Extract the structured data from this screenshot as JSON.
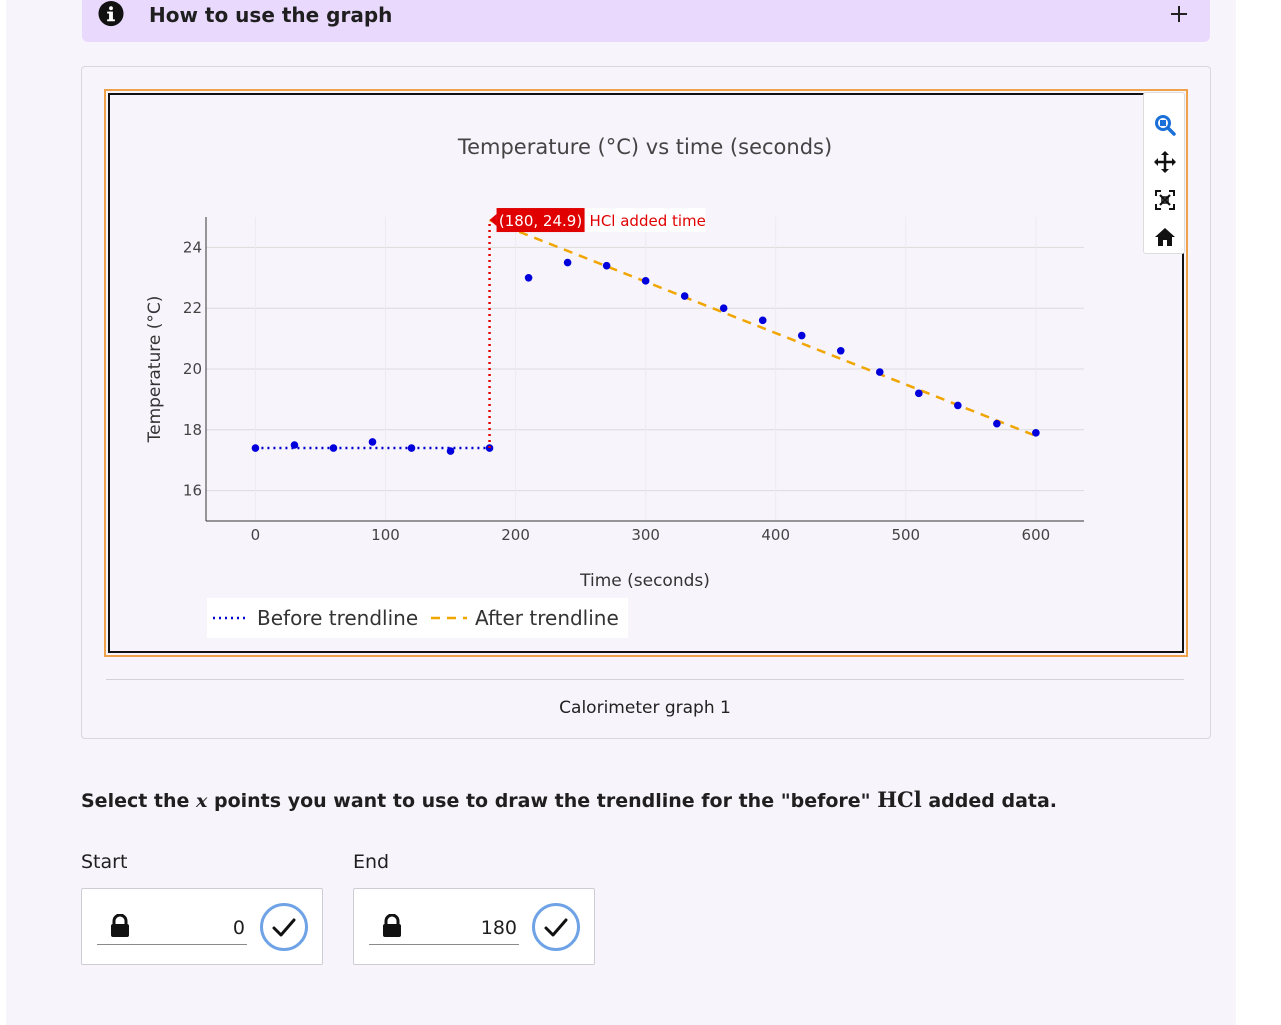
{
  "accordion": {
    "title": "How to use the graph"
  },
  "chart_data": {
    "type": "scatter",
    "title": "Temperature (°C) vs time (seconds)",
    "xlabel": "Time (seconds)",
    "ylabel": "Temperature (°C)",
    "xlim": [
      -38,
      637
    ],
    "ylim": [
      15,
      25
    ],
    "x_ticks": [
      0,
      100,
      200,
      300,
      400,
      500,
      600
    ],
    "y_ticks": [
      16,
      18,
      20,
      22,
      24
    ],
    "points": [
      {
        "x": 0,
        "y": 17.4
      },
      {
        "x": 30,
        "y": 17.5
      },
      {
        "x": 60,
        "y": 17.4
      },
      {
        "x": 90,
        "y": 17.6
      },
      {
        "x": 120,
        "y": 17.4
      },
      {
        "x": 150,
        "y": 17.3
      },
      {
        "x": 180,
        "y": 17.4
      },
      {
        "x": 210,
        "y": 23.0
      },
      {
        "x": 240,
        "y": 23.5
      },
      {
        "x": 270,
        "y": 23.4
      },
      {
        "x": 300,
        "y": 22.9
      },
      {
        "x": 330,
        "y": 22.4
      },
      {
        "x": 360,
        "y": 22.0
      },
      {
        "x": 390,
        "y": 21.6
      },
      {
        "x": 420,
        "y": 21.1
      },
      {
        "x": 450,
        "y": 20.6
      },
      {
        "x": 480,
        "y": 19.9
      },
      {
        "x": 510,
        "y": 19.2
      },
      {
        "x": 540,
        "y": 18.8
      },
      {
        "x": 570,
        "y": 18.2
      },
      {
        "x": 600,
        "y": 17.9
      }
    ],
    "series": [
      {
        "name": "Before trendline",
        "color": "#0000cc",
        "style": "dotted",
        "x": [
          0,
          180
        ],
        "y": [
          17.4,
          17.4
        ]
      },
      {
        "name": "After trendline",
        "color": "#f0a500",
        "style": "dashed",
        "x": [
          180,
          600
        ],
        "y": [
          24.9,
          17.8
        ]
      }
    ],
    "annotation": {
      "x": 180,
      "y": 24.9,
      "point_label": "(180, 24.9)",
      "text": "HCl added time",
      "color": "#e00000"
    },
    "grid": true,
    "legend_position": "bottom-left"
  },
  "caption": "Calorimeter graph 1",
  "question": {
    "part1": "Select the ",
    "var": "x",
    "part2": " points you want to use to draw the trendline for the \"before\" ",
    "chem": "HCl",
    "part3": " added data."
  },
  "start": {
    "label": "Start",
    "value": "0"
  },
  "end": {
    "label": "End",
    "value": "180"
  },
  "colors": {
    "point": "#0000dd",
    "accent": "#6fa3e6",
    "frame": "#f0a24a"
  }
}
